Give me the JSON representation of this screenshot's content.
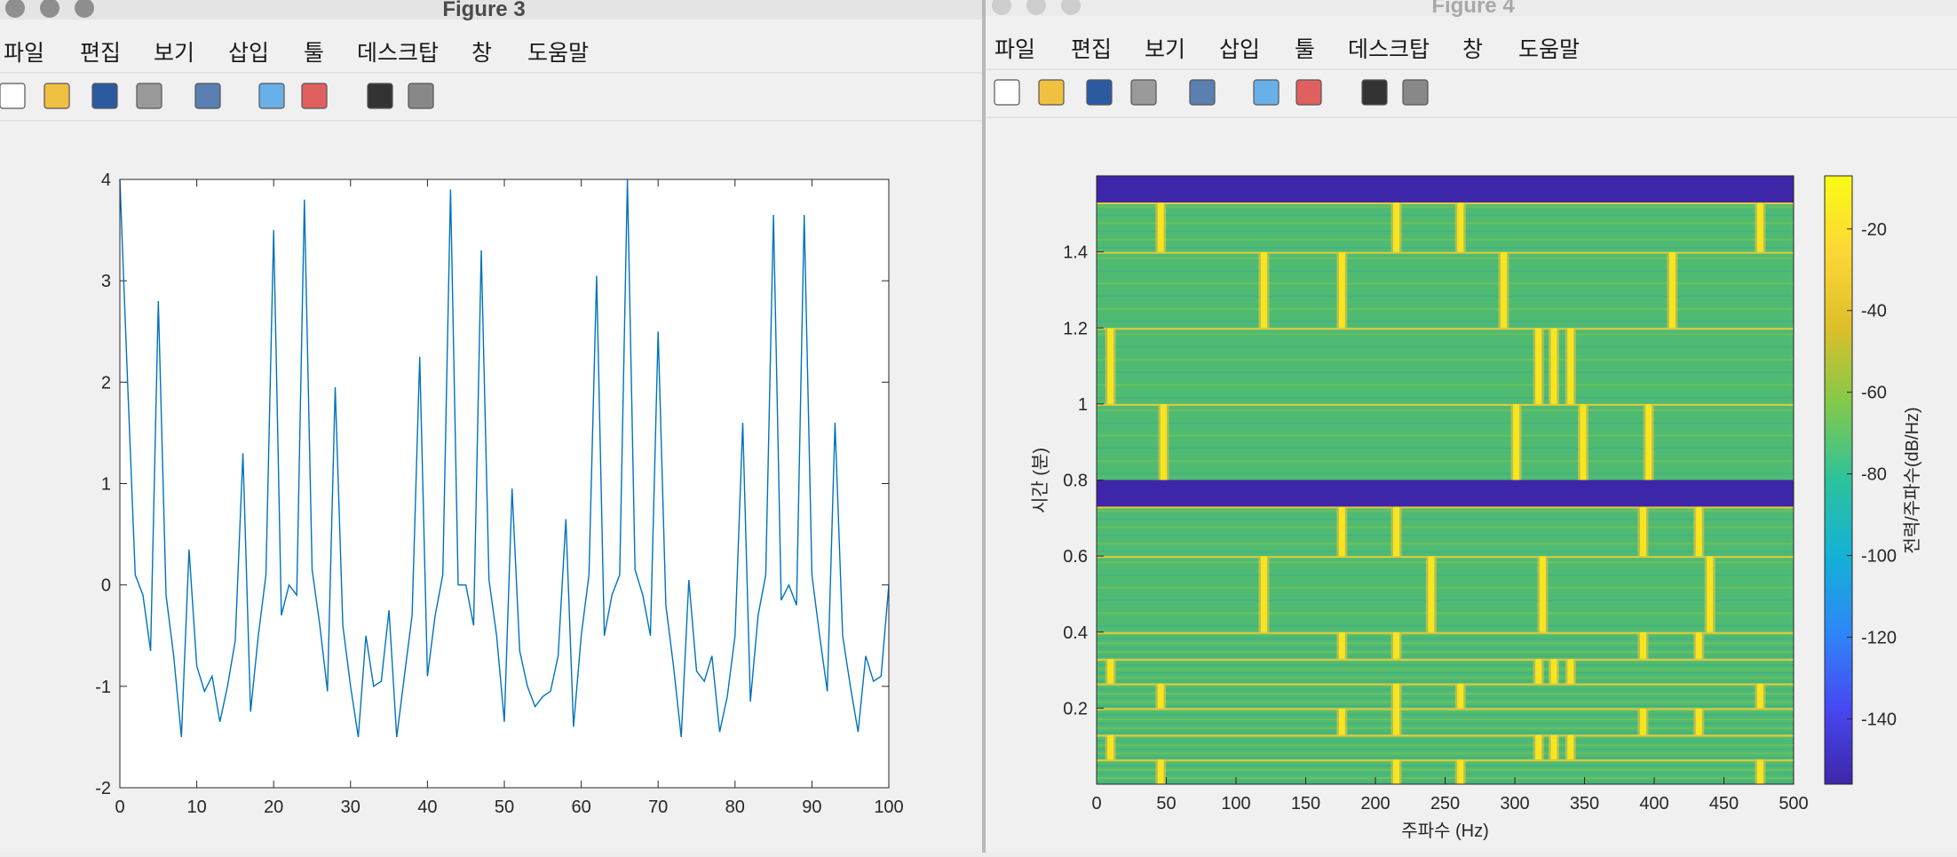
{
  "windows": [
    {
      "title": "Figure 3",
      "menu": [
        "파일",
        "편집",
        "보기",
        "삽입",
        "툴",
        "데스크탑",
        "창",
        "도움말"
      ]
    },
    {
      "title": "Figure 4",
      "menu": [
        "파일",
        "편집",
        "보기",
        "삽입",
        "툴",
        "데스크탑",
        "창",
        "도움말"
      ]
    }
  ],
  "chart_data": [
    {
      "type": "line",
      "color": "#0072bd",
      "x": [
        0,
        1,
        2,
        3,
        4,
        5,
        6,
        7,
        8,
        9,
        10,
        11,
        12,
        13,
        14,
        15,
        16,
        17,
        18,
        19,
        20,
        21,
        22,
        23,
        24,
        25,
        26,
        27,
        28,
        29,
        30,
        31,
        32,
        33,
        34,
        35,
        36,
        37,
        38,
        39,
        40,
        41,
        42,
        43,
        44,
        45,
        46,
        47,
        48,
        49,
        50,
        51,
        52,
        53,
        54,
        55,
        56,
        57,
        58,
        59,
        60,
        61,
        62,
        63,
        64,
        65,
        66,
        67,
        68,
        69,
        70,
        71,
        72,
        73,
        74,
        75,
        76,
        77,
        78,
        79,
        80,
        81,
        82,
        83,
        84,
        85,
        86,
        87,
        88,
        89,
        90,
        91,
        92,
        93,
        94,
        95,
        96,
        97,
        98,
        99,
        100
      ],
      "values": [
        4,
        2,
        0.1,
        -0.1,
        -0.65,
        2.8,
        -0.1,
        -0.7,
        -1.5,
        0.35,
        -0.8,
        -1.05,
        -0.9,
        -1.35,
        -1,
        -0.55,
        1.3,
        -1.25,
        -0.5,
        0.1,
        3.5,
        -0.3,
        0,
        -0.1,
        3.8,
        0.15,
        -0.4,
        -1.05,
        1.95,
        -0.4,
        -1,
        -1.5,
        -0.5,
        -1,
        -0.95,
        -0.25,
        -1.5,
        -0.9,
        -0.3,
        2.25,
        -0.9,
        -0.3,
        0.1,
        3.9,
        0,
        0,
        -0.4,
        3.3,
        0.05,
        -0.5,
        -1.35,
        0.95,
        -0.65,
        -1,
        -1.2,
        -1.1,
        -1.05,
        -0.7,
        0.65,
        -1.4,
        -0.5,
        0.1,
        3.05,
        -0.5,
        -0.1,
        0.1,
        4,
        0.15,
        -0.1,
        -0.5,
        2.5,
        -0.2,
        -0.8,
        -1.5,
        0.05,
        -0.85,
        -0.95,
        -0.7,
        -1.45,
        -1.1,
        -0.5,
        1.6,
        -1.15,
        -0.3,
        0.1,
        3.65,
        -0.15,
        0,
        -0.2,
        3.65,
        0.1,
        -0.5,
        -1.05,
        1.6,
        -0.5,
        -1,
        -1.45,
        -0.7,
        -0.95,
        -0.9,
        0
      ],
      "xlim": [
        0,
        100
      ],
      "ylim": [
        -2,
        4
      ],
      "xticks": [
        0,
        10,
        20,
        30,
        40,
        50,
        60,
        70,
        80,
        90,
        100
      ],
      "yticks": [
        -2,
        -1,
        0,
        1,
        2,
        3,
        4
      ]
    },
    {
      "type": "spectrogram",
      "xlabel": "주파수 (Hz)",
      "ylabel": "시간 (분)",
      "xlim": [
        0,
        500
      ],
      "ylim": [
        0,
        1.6
      ],
      "xticks": [
        0,
        50,
        100,
        150,
        200,
        250,
        300,
        350,
        400,
        450,
        500
      ],
      "yticks": [
        0.2,
        0.4,
        0.6,
        0.8,
        1,
        1.2,
        1.4
      ],
      "background_color": "#4fbb72",
      "tone_color": "#f9e51e",
      "silence_color": "#3e26a8",
      "segments": [
        {
          "t": [
            0,
            0.065
          ],
          "tones": [
            46,
            215,
            261,
            476
          ]
        },
        {
          "t": [
            0.065,
            0.13
          ],
          "tones": [
            10,
            317,
            328,
            340
          ]
        },
        {
          "t": [
            0.13,
            0.2
          ],
          "tones": [
            176,
            215,
            392,
            432
          ]
        },
        {
          "t": [
            0.2,
            0.265
          ],
          "tones": [
            46,
            215,
            261,
            476
          ]
        },
        {
          "t": [
            0.265,
            0.33
          ],
          "tones": [
            10,
            317,
            328,
            340
          ]
        },
        {
          "t": [
            0.33,
            0.4
          ],
          "tones": [
            176,
            215,
            392,
            432
          ]
        },
        {
          "t": [
            0.4,
            0.6
          ],
          "tones": [
            120,
            240,
            320,
            440
          ]
        },
        {
          "t": [
            0.6,
            0.73
          ],
          "tones": [
            176,
            215,
            392,
            432
          ]
        },
        {
          "t": [
            0.73,
            0.8
          ],
          "tones": []
        },
        {
          "t": [
            0.8,
            1
          ],
          "tones": [
            48,
            301,
            349,
            396
          ]
        },
        {
          "t": [
            1,
            1.2
          ],
          "tones": [
            10,
            317,
            328,
            340
          ]
        },
        {
          "t": [
            1.2,
            1.4
          ],
          "tones": [
            120,
            176,
            292,
            413
          ]
        },
        {
          "t": [
            1.4,
            1.53
          ],
          "tones": [
            46,
            215,
            261,
            476
          ]
        },
        {
          "t": [
            1.53,
            1.6
          ],
          "tones": []
        }
      ],
      "colorbar": {
        "label": "전력/주파수(dB/Hz)",
        "clim": [
          -156,
          -7
        ],
        "ticks": [
          -140,
          -120,
          -100,
          -80,
          -60,
          -40,
          -20
        ],
        "colormap": [
          "#3e26a8",
          "#4748f2",
          "#2e87f7",
          "#13b1d5",
          "#2cc29d",
          "#81c94a",
          "#dcbf2b",
          "#fdd636",
          "#f9fb15"
        ]
      }
    }
  ]
}
